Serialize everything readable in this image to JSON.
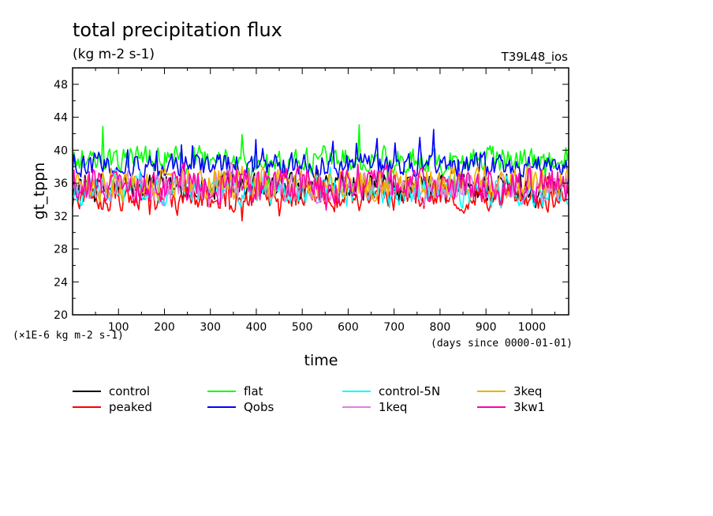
{
  "chart_data": {
    "type": "line",
    "title": "total precipitation flux",
    "subtitle": "(kg m-2 s-1)",
    "run_label": "T39L48_ios",
    "ylabel": "gt_tppn",
    "xlabel": "time",
    "x_units_note": "(days since 0000-01-01)",
    "scale_note": "(×1E-6 kg m-2 s-1)",
    "xlim": [
      0,
      1080
    ],
    "ylim": [
      20,
      50
    ],
    "x_ticks": [
      100,
      200,
      300,
      400,
      500,
      600,
      700,
      800,
      900,
      1000
    ],
    "y_ticks": [
      20,
      24,
      28,
      32,
      36,
      40,
      44,
      48
    ],
    "legend_position": "bottom",
    "series": [
      {
        "name": "control",
        "color": "#000000",
        "mean": 35.4,
        "amplitude": 1.6,
        "spike": 0.8
      },
      {
        "name": "peaked",
        "color": "#ff0000",
        "mean": 34.2,
        "amplitude": 1.3,
        "spike": 1.8
      },
      {
        "name": "flat",
        "color": "#00ff00",
        "mean": 38.8,
        "amplitude": 1.4,
        "spike": 3.0
      },
      {
        "name": "Qobs",
        "color": "#0000ff",
        "mean": 38.2,
        "amplitude": 1.2,
        "spike": 2.4
      },
      {
        "name": "control-5N",
        "color": "#00ffff",
        "mean": 35.0,
        "amplitude": 1.5,
        "spike": 1.0
      },
      {
        "name": "1keq",
        "color": "#e080e0",
        "mean": 35.6,
        "amplitude": 1.6,
        "spike": 1.0
      },
      {
        "name": "3keq",
        "color": "#f0b000",
        "mean": 36.0,
        "amplitude": 1.7,
        "spike": 1.2
      },
      {
        "name": "3kw1",
        "color": "#ff00aa",
        "mean": 35.8,
        "amplitude": 1.8,
        "spike": 1.3
      }
    ]
  }
}
